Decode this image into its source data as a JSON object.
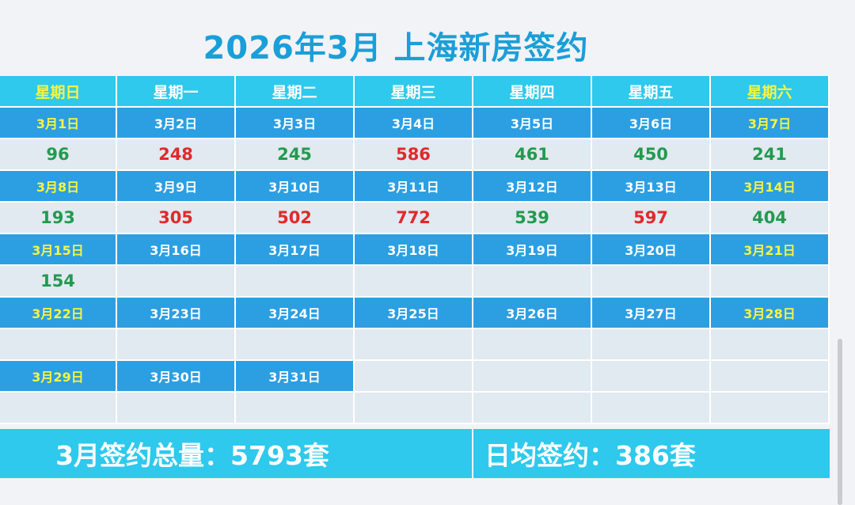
{
  "title": "2026年3月 上海新房签约",
  "weekdays": [
    "星期日",
    "星期一",
    "星期二",
    "星期三",
    "星期四",
    "星期五",
    "星期六"
  ],
  "weeks": [
    {
      "dates": [
        "3月1日",
        "3月2日",
        "3月3日",
        "3月4日",
        "3月5日",
        "3月6日",
        "3月7日"
      ],
      "values": [
        "96",
        "248",
        "245",
        "586",
        "461",
        "450",
        "241"
      ],
      "trend": [
        "down",
        "up",
        "down",
        "up",
        "down",
        "down",
        "down"
      ]
    },
    {
      "dates": [
        "3月8日",
        "3月9日",
        "3月10日",
        "3月11日",
        "3月12日",
        "3月13日",
        "3月14日"
      ],
      "values": [
        "193",
        "305",
        "502",
        "772",
        "539",
        "597",
        "404"
      ],
      "trend": [
        "down",
        "up",
        "up",
        "up",
        "down",
        "up",
        "down"
      ]
    },
    {
      "dates": [
        "3月15日",
        "3月16日",
        "3月17日",
        "3月18日",
        "3月19日",
        "3月20日",
        "3月21日"
      ],
      "values": [
        "154",
        "",
        "",
        "",
        "",
        "",
        ""
      ],
      "trend": [
        "down",
        "",
        "",
        "",
        "",
        "",
        ""
      ]
    },
    {
      "dates": [
        "3月22日",
        "3月23日",
        "3月24日",
        "3月25日",
        "3月26日",
        "3月27日",
        "3月28日"
      ],
      "values": [
        "",
        "",
        "",
        "",
        "",
        "",
        ""
      ],
      "trend": [
        "",
        "",
        "",
        "",
        "",
        "",
        ""
      ]
    },
    {
      "dates": [
        "3月29日",
        "3月30日",
        "3月31日",
        "",
        "",
        "",
        ""
      ],
      "values": [
        "",
        "",
        "",
        "",
        "",
        "",
        ""
      ],
      "trend": [
        "",
        "",
        "",
        "",
        "",
        "",
        ""
      ]
    }
  ],
  "summary": {
    "total": "3月签约总量：5793套",
    "daily_avg": "日均签约：386套"
  },
  "colors": {
    "title": "#1a9fd8",
    "header": "#2ec9ec",
    "date_row": "#2c9fe2",
    "value_row": "#e1e9f1",
    "weekend_text": "#f5f542",
    "up": "#e02a2a",
    "down": "#239a4e"
  }
}
